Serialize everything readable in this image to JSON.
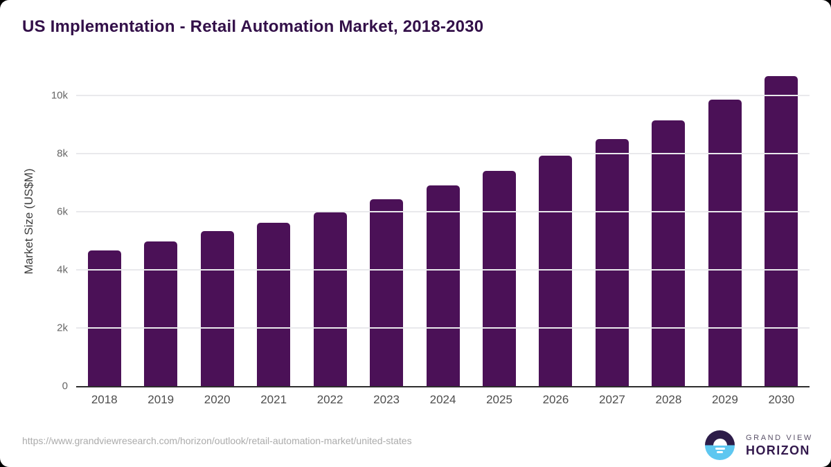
{
  "page": {
    "title": "US Implementation - Retail Automation Market, 2018-2030"
  },
  "chart_data": {
    "type": "bar",
    "title": "US Implementation - Retail Automation Market, 2018-2030",
    "categories": [
      "2018",
      "2019",
      "2020",
      "2021",
      "2022",
      "2023",
      "2024",
      "2025",
      "2026",
      "2027",
      "2028",
      "2029",
      "2030"
    ],
    "values": [
      4670,
      4990,
      5350,
      5620,
      5980,
      6440,
      6900,
      7400,
      7940,
      8510,
      9150,
      9860,
      10670
    ],
    "xlabel": "",
    "ylabel": "Market Size (US$M)",
    "ylim": [
      0,
      11200
    ],
    "ytick_values": [
      0,
      2000,
      4000,
      6000,
      8000,
      10000
    ],
    "ytick_labels": [
      "0",
      "2k",
      "4k",
      "6k",
      "8k",
      "10k"
    ],
    "grid": "horizontal gridlines",
    "legend": "none",
    "bar_color": "#4B1157"
  },
  "footer": {
    "source_url": "https://www.grandviewresearch.com/horizon/outlook/retail-automation-market/united-states",
    "logo": {
      "brand_top": "GRAND VIEW",
      "brand_bottom": "HORIZON"
    }
  },
  "colors": {
    "bar": "#4B1157",
    "title_text": "#331049",
    "axis_line": "#2d2d2d",
    "gridline": "#e9e9ec",
    "xtick_text": "#4d4d4d",
    "ytick_text": "#666666",
    "url_text": "#ababab",
    "logo_dark_half": "#2d1c49",
    "logo_blue_half": "#5ec7f0",
    "logo_brand_top_text": "#5a5168",
    "logo_brand_bottom_text": "#33194d"
  }
}
